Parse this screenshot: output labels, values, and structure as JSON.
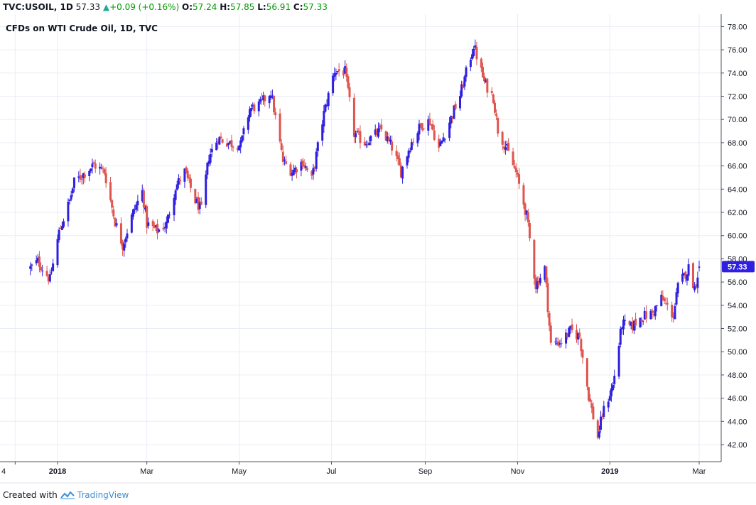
{
  "header": {
    "symbol": "TVC:USOIL, 1D",
    "last": "57.33",
    "change_arrow": "▲",
    "change": "+0.09 (+0.16%)",
    "o_label": "O:",
    "o_value": "57.24",
    "h_label": "H:",
    "h_value": "57.85",
    "l_label": "L:",
    "l_value": "56.91",
    "c_label": "C:",
    "c_value": "57.33"
  },
  "subtitle": "CFDs on WTI Crude Oil, 1D, TVC",
  "footer": {
    "created_with": "Created with",
    "brand": "TradingView"
  },
  "colors": {
    "up": "#2f1fe0",
    "down": "#e0544e",
    "grid": "#e9edf5",
    "price_tag": "#2f1fe0"
  },
  "chart_data": {
    "type": "candlestick",
    "title": "CFDs on WTI Crude Oil, 1D, TVC",
    "x_tick_labels": [
      "4",
      "2018",
      "Mar",
      "May",
      "Jul",
      "Sep",
      "Nov",
      "2019",
      "Mar"
    ],
    "y_tick_labels": [
      "42.00",
      "44.00",
      "46.00",
      "48.00",
      "50.00",
      "52.00",
      "54.00",
      "56.00",
      "58.00",
      "60.00",
      "62.00",
      "64.00",
      "66.00",
      "68.00",
      "70.00",
      "72.00",
      "74.00",
      "76.00",
      "78.00"
    ],
    "ylim": [
      41,
      78.5
    ],
    "last_price": "57.33",
    "grid": true,
    "anchors": [
      [
        "2017-12-14",
        57.2
      ],
      [
        "2017-12-19",
        57.8
      ],
      [
        "2017-12-27",
        56.2
      ],
      [
        "2018-01-02",
        60.3
      ],
      [
        "2018-01-09",
        63.0
      ],
      [
        "2018-01-12",
        64.6
      ],
      [
        "2018-01-25",
        66.1
      ],
      [
        "2018-02-01",
        65.5
      ],
      [
        "2018-02-08",
        61.2
      ],
      [
        "2018-02-13",
        59.2
      ],
      [
        "2018-02-20",
        62.0
      ],
      [
        "2018-02-26",
        63.8
      ],
      [
        "2018-03-01",
        61.0
      ],
      [
        "2018-03-08",
        60.4
      ],
      [
        "2018-03-14",
        61.0
      ],
      [
        "2018-03-20",
        64.2
      ],
      [
        "2018-03-26",
        65.5
      ],
      [
        "2018-04-02",
        63.0
      ],
      [
        "2018-04-06",
        62.2
      ],
      [
        "2018-04-11",
        66.8
      ],
      [
        "2018-04-17",
        68.4
      ],
      [
        "2018-04-24",
        68.0
      ],
      [
        "2018-05-02",
        67.8
      ],
      [
        "2018-05-08",
        70.9
      ],
      [
        "2018-05-15",
        71.3
      ],
      [
        "2018-05-22",
        72.4
      ],
      [
        "2018-05-30",
        66.4
      ],
      [
        "2018-06-05",
        65.5
      ],
      [
        "2018-06-12",
        66.4
      ],
      [
        "2018-06-18",
        64.8
      ],
      [
        "2018-06-26",
        70.5
      ],
      [
        "2018-07-03",
        74.2
      ],
      [
        "2018-07-10",
        74.1
      ],
      [
        "2018-07-16",
        68.8
      ],
      [
        "2018-07-23",
        68.0
      ],
      [
        "2018-07-31",
        68.8
      ],
      [
        "2018-08-03",
        69.1
      ],
      [
        "2018-08-10",
        67.6
      ],
      [
        "2018-08-16",
        65.5
      ],
      [
        "2018-08-22",
        67.8
      ],
      [
        "2018-08-29",
        69.5
      ],
      [
        "2018-09-04",
        69.9
      ],
      [
        "2018-09-10",
        67.5
      ],
      [
        "2018-09-17",
        69.8
      ],
      [
        "2018-09-24",
        72.1
      ],
      [
        "2018-10-03",
        76.4
      ],
      [
        "2018-10-10",
        73.2
      ],
      [
        "2018-10-16",
        71.9
      ],
      [
        "2018-10-19",
        69.1
      ],
      [
        "2018-10-25",
        67.4
      ],
      [
        "2018-10-31",
        65.4
      ],
      [
        "2018-11-07",
        61.7
      ],
      [
        "2018-11-13",
        55.7
      ],
      [
        "2018-11-19",
        57.2
      ],
      [
        "2018-11-23",
        50.6
      ],
      [
        "2018-11-30",
        50.9
      ],
      [
        "2018-12-06",
        51.8
      ],
      [
        "2018-12-12",
        51.3
      ],
      [
        "2018-12-18",
        46.2
      ],
      [
        "2018-12-24",
        42.6
      ],
      [
        "2018-12-27",
        44.6
      ],
      [
        "2019-01-03",
        47.1
      ],
      [
        "2019-01-09",
        52.4
      ],
      [
        "2019-01-15",
        52.1
      ],
      [
        "2019-01-22",
        53.0
      ],
      [
        "2019-01-29",
        53.3
      ],
      [
        "2019-02-04",
        54.6
      ],
      [
        "2019-02-12",
        53.1
      ],
      [
        "2019-02-15",
        55.6
      ],
      [
        "2019-02-22",
        57.2
      ],
      [
        "2019-02-26",
        55.5
      ],
      [
        "2019-03-01",
        57.3
      ]
    ]
  }
}
